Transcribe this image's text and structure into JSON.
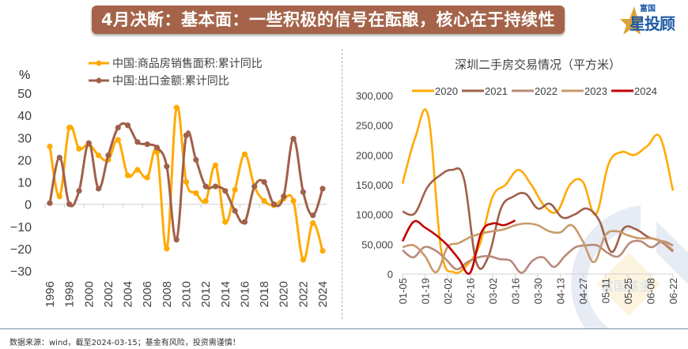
{
  "header": {
    "title": "4月决断：基本面：一些积极的信号在酝酿，核心在于持续性",
    "logo_small": "富国",
    "logo_big": "星投顾"
  },
  "watermark": {
    "text": "富国基金"
  },
  "footer": {
    "source": "数据来源：wind，截至2024-03-15；基金有风险，投资需谨慎！"
  },
  "colors": {
    "banner": "#a5644a",
    "series_sales": "#ffaa00",
    "series_export": "#a0604a",
    "y2020": "#ffaa00",
    "y2021": "#a0604a",
    "y2022": "#b88a7a",
    "y2023": "#c89a6a",
    "y2024": "#c00000"
  },
  "chart_data": [
    {
      "type": "line",
      "title": "",
      "ylabel": "%",
      "xlabel": "",
      "ylim": [
        -30,
        50
      ],
      "yticks": [
        50,
        40,
        30,
        20,
        10,
        0,
        -10,
        -20,
        -30
      ],
      "legend_position": "top",
      "x": [
        1996,
        1997,
        1998,
        1999,
        2000,
        2001,
        2002,
        2003,
        2004,
        2005,
        2006,
        2007,
        2008,
        2009,
        2010,
        2011,
        2012,
        2013,
        2014,
        2015,
        2016,
        2017,
        2018,
        2019,
        2020,
        2021,
        2022,
        2023,
        2024
      ],
      "xticks": [
        "1996",
        "1998",
        "2000",
        "2002",
        "2004",
        "2006",
        "2008",
        "2010",
        "2012",
        "2014",
        "2016",
        "2018",
        "2020",
        "2022",
        "2024"
      ],
      "series": [
        {
          "name": "中国:商品房销售面积:累计同比",
          "color_key": "series_sales",
          "values": [
            26,
            3.5,
            34.5,
            25,
            27,
            22,
            20,
            29,
            13,
            15.5,
            12,
            23.5,
            -20,
            43.5,
            10,
            5,
            1.5,
            17.5,
            -8,
            6.5,
            22.5,
            8,
            1.5,
            -0.5,
            2.5,
            1.5,
            -25,
            -8.5,
            -21
          ]
        },
        {
          "name": "中国:出口金额:累计同比",
          "color_key": "series_export",
          "values": [
            0.5,
            21,
            0,
            6,
            27.5,
            7,
            22,
            34.5,
            35.5,
            28,
            27,
            25.5,
            17,
            -16,
            31,
            20,
            8,
            8,
            6,
            -3,
            -8,
            8,
            10,
            0,
            3.5,
            29.5,
            5.5,
            -5,
            7
          ]
        }
      ]
    },
    {
      "type": "line",
      "title": "深圳二手房交易情况（平方米）",
      "xlabel": "",
      "ylabel": "",
      "ylim": [
        0,
        300000
      ],
      "yticks": [
        "300,000",
        "250,000",
        "200,000",
        "150,000",
        "100,000",
        "50,000",
        "0"
      ],
      "legend_position": "top",
      "xticks": [
        "01-05",
        "01-19",
        "02-02",
        "02-16",
        "03-02",
        "03-16",
        "03-30",
        "04-13",
        "04-27",
        "05-11",
        "05-25",
        "06-08",
        "06-22"
      ],
      "series": [
        {
          "name": "2020",
          "color_key": "y2020",
          "values": [
            152000,
            230000,
            265000,
            40000,
            3000,
            15000,
            50000,
            130000,
            150000,
            175000,
            150000,
            115000,
            105000,
            150000,
            155000,
            100000,
            185000,
            205000,
            200000,
            215000,
            230000,
            140000
          ]
        },
        {
          "name": "2021",
          "color_key": "y2021",
          "values": [
            105000,
            102000,
            145000,
            165000,
            175000,
            160000,
            20000,
            30000,
            110000,
            130000,
            135000,
            110000,
            118000,
            95000,
            100000,
            110000,
            90000,
            37000,
            77000,
            75000,
            62000,
            55000,
            38000
          ]
        },
        {
          "name": "2022",
          "color_key": "y2022",
          "values": [
            40000,
            28000,
            45000,
            40000,
            25000,
            8000,
            20000,
            28000,
            30000,
            25000,
            22000,
            2000,
            22000,
            28000,
            12000,
            30000,
            45000,
            48000,
            48000,
            35000,
            30000,
            52000,
            55000,
            45000,
            55000,
            48000
          ]
        },
        {
          "name": "2023",
          "color_key": "y2023",
          "values": [
            45000,
            48000,
            30000,
            3000,
            45000,
            52000,
            62000,
            68000,
            72000,
            75000,
            82000,
            85000,
            82000,
            72000,
            70000,
            82000,
            55000,
            20000,
            65000,
            72000,
            65000,
            60000,
            60000,
            55000,
            40000
          ]
        },
        {
          "name": "2024",
          "color_key": "y2024",
          "values": [
            55000,
            88000,
            78000,
            65000,
            48000,
            25000,
            2000,
            70000,
            85000,
            82000,
            90000
          ]
        }
      ]
    }
  ]
}
